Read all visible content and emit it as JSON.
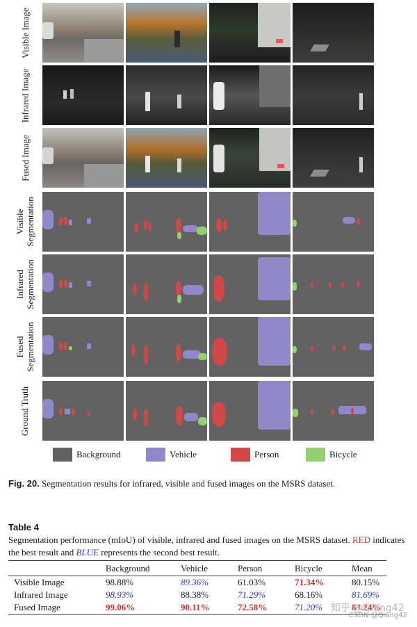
{
  "figure": {
    "row_labels": [
      [
        "Visible Image"
      ],
      [
        "Infrared Image"
      ],
      [
        "Fused Image"
      ],
      [
        "Visible",
        "Segmentation"
      ],
      [
        "Infrared",
        "Segmentation"
      ],
      [
        "Fused",
        "Segmentation"
      ],
      [
        "Ground Truth"
      ]
    ],
    "legend": [
      {
        "label": "Background",
        "color": "#626262"
      },
      {
        "label": "Vehicle",
        "color": "#9088c8"
      },
      {
        "label": "Person",
        "color": "#d24848"
      },
      {
        "label": "Bicycle",
        "color": "#92d26e"
      }
    ]
  },
  "caption": {
    "label": "Fig. 20.",
    "text": " Segmentation results for infrared, visible and fused images on the MSRS dataset."
  },
  "table": {
    "title": "Table 4",
    "desc_part1": "Segmentation performance (mIoU) of visible, infrared and fused images on the MSRS dataset. ",
    "desc_red": "RED",
    "desc_part2": " indicates the best result and ",
    "desc_blue": "BLUE",
    "desc_part3": " represents the second best result.",
    "headers": [
      "",
      "Background",
      "Vehicle",
      "Person",
      "Bicycle",
      "Mean"
    ],
    "rows": [
      {
        "name": "Visible Image",
        "cells": [
          "98.88%",
          "89.36%",
          "61.03%",
          "71.34%",
          "80.15%"
        ],
        "marks": [
          "",
          "second",
          "",
          "best",
          ""
        ]
      },
      {
        "name": "Infrared Image",
        "cells": [
          "98.93%",
          "88.38%",
          "71.29%",
          "68.16%",
          "81.69%"
        ],
        "marks": [
          "second",
          "",
          "second",
          "",
          "second"
        ]
      },
      {
        "name": "Fused Image",
        "cells": [
          "99.06%",
          "90.11%",
          "72.58%",
          "71.20%",
          "83.24%"
        ],
        "marks": [
          "best",
          "best",
          "best",
          "second",
          "best"
        ]
      }
    ]
  },
  "watermark": {
    "line1": "知乎 @Qiang42",
    "line2": "CSDN @Qiang42"
  }
}
